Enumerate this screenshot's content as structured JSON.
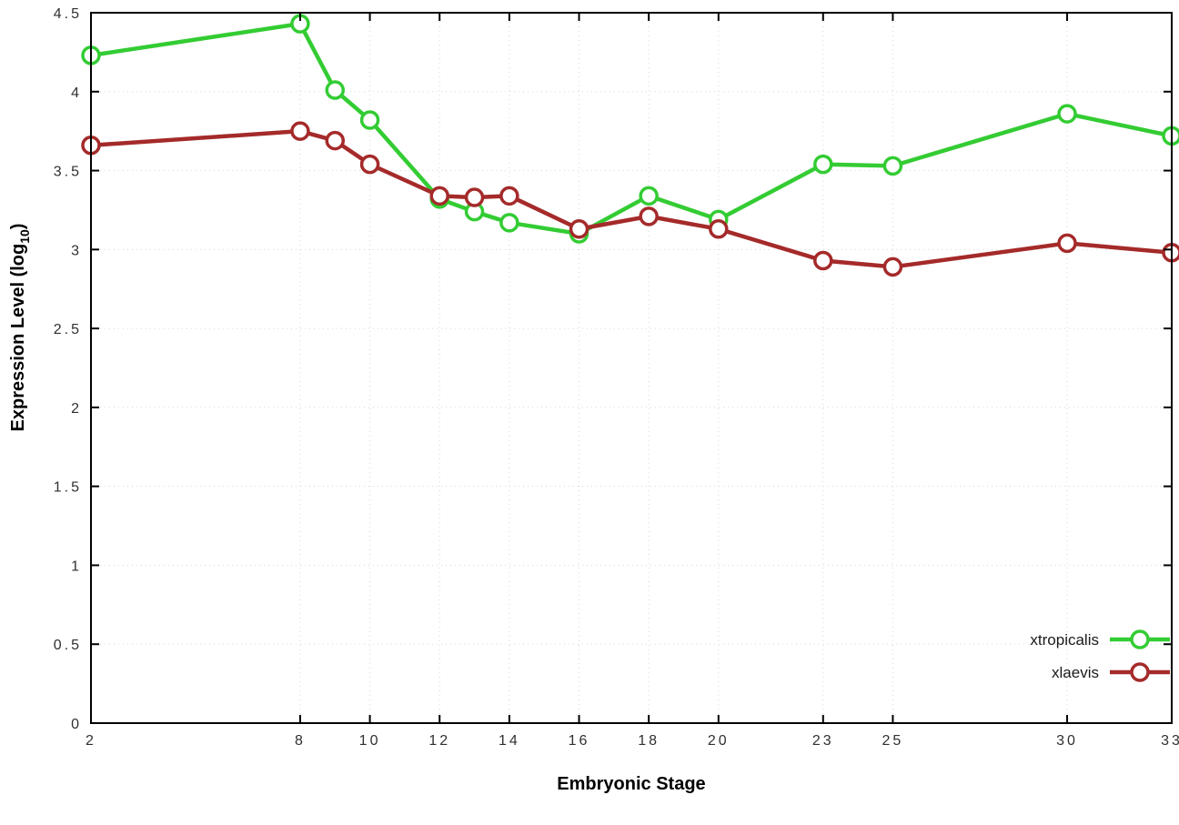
{
  "figure": {
    "background": "#ffffff",
    "border_color": "#000000",
    "grid_color": "#d8d8d8"
  },
  "chart_data": {
    "type": "line",
    "title": "",
    "xlabel": "Embryonic Stage",
    "ylabel_main": "Expression Level (log",
    "ylabel_sub": "10",
    "ylabel_close": ")",
    "xlim": [
      2,
      33
    ],
    "ylim": [
      0,
      4.5
    ],
    "x_ticks": [
      2,
      8,
      10,
      12,
      14,
      16,
      18,
      20,
      23,
      25,
      30,
      33
    ],
    "x_tick_labels": [
      "2",
      "8",
      "10",
      "12",
      "14",
      "16",
      "18",
      "20",
      "23",
      "25",
      "30",
      "33"
    ],
    "y_ticks": [
      0,
      0.5,
      1,
      1.5,
      2,
      2.5,
      3,
      3.5,
      4,
      4.5
    ],
    "y_tick_labels": [
      "0",
      "0.5",
      "1",
      "1.5",
      "2",
      "2.5",
      "3",
      "3.5",
      "4",
      "4.5"
    ],
    "grid": true,
    "legend_position": "bottom-right",
    "series": [
      {
        "name": "xtropicalis",
        "color": "#33cc33",
        "marker": "open-circle",
        "x": [
          2,
          8,
          9,
          10,
          12,
          13,
          14,
          16,
          18,
          20,
          23,
          25,
          30,
          33
        ],
        "y": [
          4.23,
          4.43,
          4.01,
          3.82,
          3.32,
          3.24,
          3.17,
          3.1,
          3.34,
          3.19,
          3.54,
          3.53,
          3.86,
          3.72
        ]
      },
      {
        "name": "xlaevis",
        "color": "#a52a2a",
        "marker": "open-circle",
        "x": [
          2,
          8,
          9,
          10,
          12,
          13,
          14,
          16,
          18,
          20,
          23,
          25,
          30,
          33
        ],
        "y": [
          3.66,
          3.75,
          3.69,
          3.54,
          3.34,
          3.33,
          3.34,
          3.13,
          3.21,
          3.13,
          2.93,
          2.89,
          3.04,
          2.98
        ]
      }
    ]
  }
}
